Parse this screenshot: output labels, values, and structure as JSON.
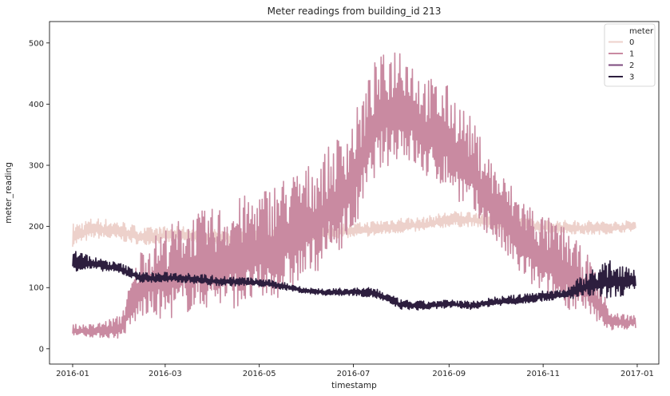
{
  "chart_data": {
    "type": "line",
    "title": "Meter readings from building_id 213",
    "xlabel": "timestamp",
    "ylabel": "meter_reading",
    "x_ticks": [
      "2016-01",
      "2016-03",
      "2016-05",
      "2016-07",
      "2016-09",
      "2016-11",
      "2017-01"
    ],
    "y_ticks": [
      0,
      100,
      200,
      300,
      400,
      500
    ],
    "xlim": [
      "2015-12-17",
      "2017-01-15"
    ],
    "ylim": [
      -25,
      535
    ],
    "grid": false,
    "legend": {
      "title": "meter",
      "placement": "top-right",
      "entries": [
        "0",
        "1",
        "2",
        "3"
      ]
    },
    "series": [
      {
        "name": "0",
        "color": "#edd1cb",
        "x": [
          "2016-01-01",
          "2016-01-15",
          "2016-02-01",
          "2016-02-15",
          "2016-03-01",
          "2016-03-15",
          "2016-04-01",
          "2016-04-15",
          "2016-05-01",
          "2016-05-15",
          "2016-06-01",
          "2016-06-15",
          "2016-07-01",
          "2016-07-15",
          "2016-08-01",
          "2016-08-15",
          "2016-09-01",
          "2016-09-15",
          "2016-10-01",
          "2016-10-15",
          "2016-11-01",
          "2016-11-15",
          "2016-12-01",
          "2016-12-15",
          "2016-12-31"
        ],
        "low": [
          160,
          175,
          170,
          165,
          168,
          170,
          168,
          165,
          163,
          165,
          170,
          175,
          178,
          180,
          185,
          188,
          195,
          195,
          192,
          188,
          185,
          185,
          182,
          185,
          190
        ],
        "high": [
          205,
          215,
          210,
          198,
          200,
          200,
          198,
          195,
          195,
          195,
          200,
          205,
          205,
          210,
          215,
          215,
          225,
          225,
          222,
          215,
          210,
          210,
          210,
          208,
          210
        ]
      },
      {
        "name": "1",
        "color": "#c98aa1",
        "x": [
          "2016-01-01",
          "2016-01-15",
          "2016-02-01",
          "2016-02-15",
          "2016-03-01",
          "2016-03-15",
          "2016-04-01",
          "2016-04-15",
          "2016-05-01",
          "2016-05-15",
          "2016-06-01",
          "2016-06-15",
          "2016-07-01",
          "2016-07-15",
          "2016-08-01",
          "2016-08-15",
          "2016-09-01",
          "2016-09-15",
          "2016-10-01",
          "2016-10-15",
          "2016-11-01",
          "2016-11-15",
          "2016-12-01",
          "2016-12-15",
          "2016-12-31"
        ],
        "low": [
          20,
          15,
          10,
          30,
          20,
          30,
          40,
          35,
          40,
          50,
          80,
          110,
          150,
          250,
          280,
          250,
          230,
          190,
          150,
          100,
          60,
          45,
          30,
          25,
          30
        ],
        "high": [
          40,
          40,
          55,
          170,
          200,
          220,
          230,
          245,
          260,
          280,
          300,
          330,
          380,
          470,
          510,
          450,
          430,
          380,
          300,
          260,
          220,
          200,
          150,
          60,
          55
        ]
      },
      {
        "name": "2",
        "color": "#7c4a7e",
        "x": [],
        "y": []
      },
      {
        "name": "3",
        "color": "#2d1e3e",
        "x": [
          "2016-01-01",
          "2016-01-15",
          "2016-02-01",
          "2016-02-15",
          "2016-03-01",
          "2016-03-15",
          "2016-04-01",
          "2016-04-15",
          "2016-05-01",
          "2016-05-15",
          "2016-06-01",
          "2016-06-15",
          "2016-07-01",
          "2016-07-15",
          "2016-08-01",
          "2016-08-15",
          "2016-09-01",
          "2016-09-15",
          "2016-10-01",
          "2016-10-15",
          "2016-11-01",
          "2016-11-15",
          "2016-12-01",
          "2016-12-15",
          "2016-12-31"
        ],
        "low": [
          120,
          125,
          120,
          105,
          105,
          105,
          100,
          100,
          100,
          95,
          88,
          85,
          85,
          80,
          62,
          60,
          65,
          62,
          68,
          70,
          75,
          78,
          75,
          72,
          80
        ],
        "high": [
          165,
          150,
          140,
          125,
          125,
          125,
          120,
          118,
          115,
          110,
          100,
          98,
          100,
          100,
          80,
          78,
          80,
          78,
          85,
          88,
          95,
          98,
          130,
          145,
          140
        ]
      }
    ]
  }
}
